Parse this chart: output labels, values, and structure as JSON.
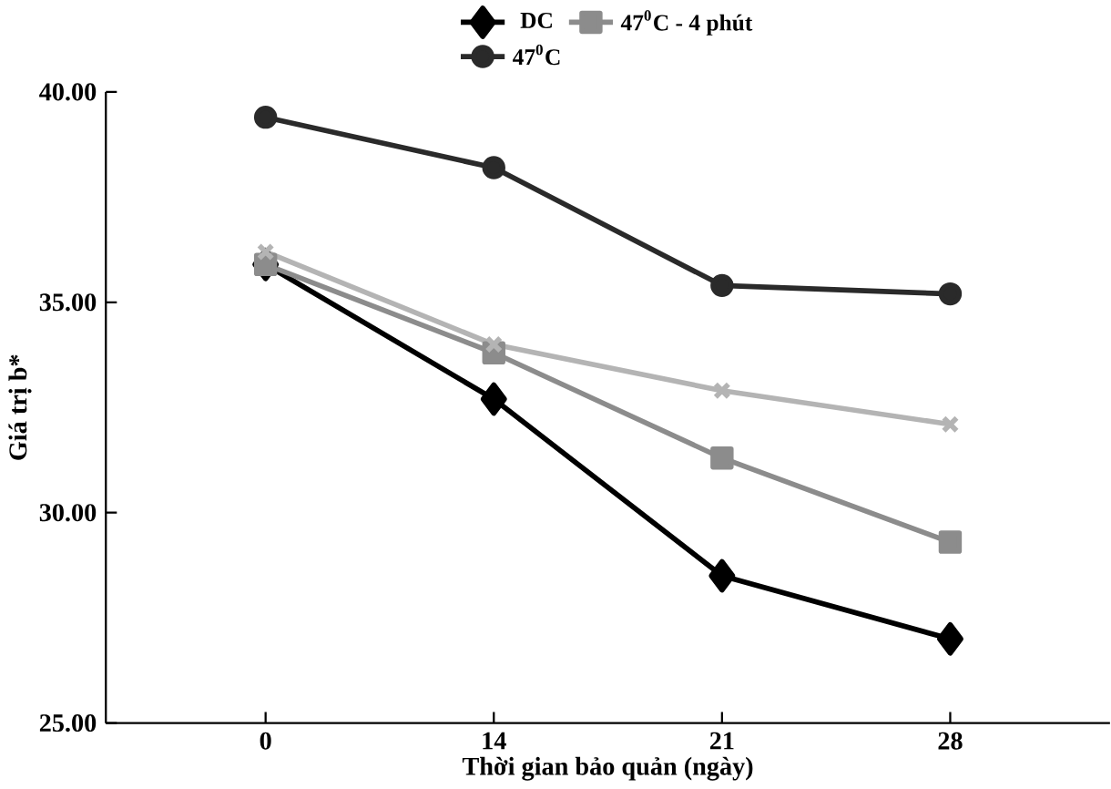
{
  "chart_data": {
    "type": "line",
    "xlabel": "Thời gian bảo quản (ngày)",
    "ylabel": "Giá trị b*",
    "categories": [
      "0",
      "14",
      "21",
      "28"
    ],
    "series": [
      {
        "name": "DC",
        "color": "#000000",
        "marker": "diamond",
        "values": [
          35.9,
          32.7,
          28.5,
          27.0
        ]
      },
      {
        "name": "47$^{0}$C - 4 phút",
        "color": "#8c8c8c",
        "marker": "square",
        "values": [
          35.9,
          33.8,
          31.3,
          29.3
        ]
      },
      {
        "color": "#b4b4b4",
        "marker": "cross",
        "values": [
          36.2,
          34.0,
          32.9,
          32.1
        ]
      },
      {
        "name": "47$^{0}$C",
        "color": "#2a2a2a",
        "marker": "circle",
        "values": [
          39.4,
          38.2,
          35.4,
          35.2
        ]
      }
    ],
    "ylim": [
      25,
      40
    ],
    "yticks": [
      {
        "value": 25,
        "label": "25.00"
      },
      {
        "value": 30,
        "label": "30.00"
      },
      {
        "value": 35,
        "label": "35.00"
      },
      {
        "value": 40,
        "label": "40.00"
      }
    ],
    "grid": false,
    "legend": "top",
    "line_style": "solid"
  }
}
